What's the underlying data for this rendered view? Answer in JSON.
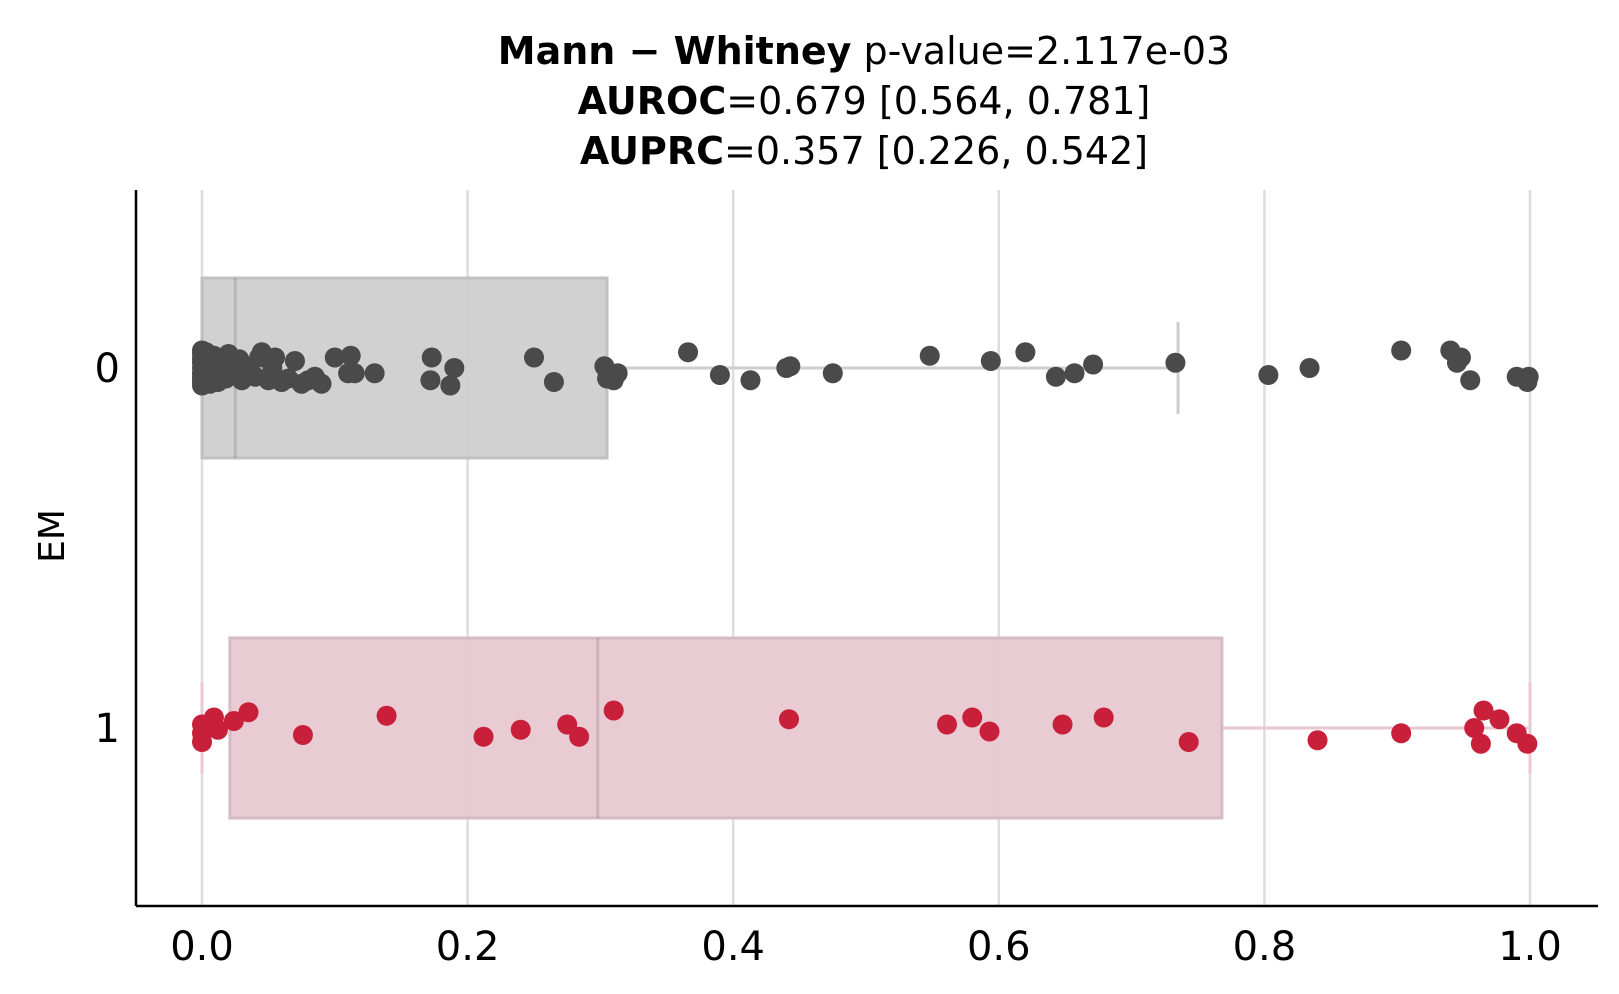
{
  "title": {
    "line1_bold": "Mann − Whitney",
    "line1_rest": " p-value=2.117e-03",
    "line2_bold": "AUROC",
    "line2_rest": "=0.679 [0.564, 0.781]",
    "line3_bold": "AUPRC",
    "line3_rest": "=0.357 [0.226, 0.542]"
  },
  "chart_data": {
    "type": "box",
    "orientation": "horizontal",
    "ylabel": "EM",
    "xlabel": "",
    "xlim": [
      -0.05,
      1.05
    ],
    "xticks": [
      "0.0",
      "0.2",
      "0.4",
      "0.6",
      "0.8",
      "1.0"
    ],
    "xtick_values": [
      0,
      0.2,
      0.4,
      0.6,
      0.8,
      1.0
    ],
    "grid": "vertical",
    "groups": [
      {
        "label": "0",
        "box_color": "#cfcfcf",
        "point_color": "#4a4a4a",
        "q1": 0.0,
        "median": 0.025,
        "q3": 0.305,
        "whisker_low": 0.0,
        "whisker_high": 0.735,
        "points": [
          0.0,
          0.0,
          0.0,
          0.0,
          0.0,
          0.0,
          0.0,
          0.0,
          0.0,
          0.0,
          0.002,
          0.003,
          0.004,
          0.005,
          0.006,
          0.007,
          0.008,
          0.009,
          0.01,
          0.012,
          0.015,
          0.018,
          0.02,
          0.022,
          0.025,
          0.028,
          0.03,
          0.033,
          0.035,
          0.04,
          0.043,
          0.045,
          0.05,
          0.053,
          0.055,
          0.06,
          0.065,
          0.07,
          0.075,
          0.08,
          0.085,
          0.09,
          0.1,
          0.11,
          0.112,
          0.115,
          0.13,
          0.172,
          0.173,
          0.187,
          0.19,
          0.25,
          0.265,
          0.303,
          0.305,
          0.31,
          0.313,
          0.366,
          0.39,
          0.413,
          0.44,
          0.443,
          0.475,
          0.548,
          0.594,
          0.62,
          0.643,
          0.657,
          0.671,
          0.733,
          0.803,
          0.834,
          0.903,
          0.94,
          0.945,
          0.948,
          0.955,
          0.99,
          0.998,
          0.999
        ],
        "jitter": [
          0.1,
          -0.1,
          0.05,
          -0.05,
          0.0,
          0.08,
          -0.08,
          0.03,
          -0.03,
          0.06,
          0.07,
          -0.09,
          0.02,
          -0.06,
          0.09,
          -0.02,
          0.04,
          -0.07,
          0.01,
          0.08,
          -0.04,
          0.06,
          -0.08,
          0.03,
          0.02,
          -0.05,
          0.07,
          -0.01,
          0.04,
          0.05,
          -0.06,
          -0.09,
          0.07,
          0.0,
          -0.06,
          0.08,
          0.06,
          -0.04,
          0.09,
          0.07,
          0.05,
          0.09,
          -0.06,
          0.03,
          -0.07,
          0.03,
          0.03,
          0.07,
          -0.06,
          0.1,
          0.0,
          -0.06,
          0.08,
          -0.01,
          0.06,
          0.07,
          0.03,
          -0.09,
          0.04,
          0.07,
          0.0,
          -0.01,
          0.03,
          -0.07,
          -0.04,
          -0.09,
          0.05,
          0.03,
          -0.02,
          -0.03,
          0.04,
          0.0,
          -0.1,
          -0.1,
          -0.03,
          -0.06,
          0.07,
          0.05,
          0.08,
          0.05
        ]
      },
      {
        "label": "1",
        "box_color": "#e8c9d1",
        "point_color": "#c8203b",
        "q1": 0.021,
        "median": 0.298,
        "q3": 0.768,
        "whisker_low": 0.0,
        "whisker_high": 1.0,
        "points": [
          0.0,
          0.0,
          0.0,
          0.009,
          0.01,
          0.012,
          0.024,
          0.035,
          0.076,
          0.139,
          0.212,
          0.24,
          0.275,
          0.284,
          0.31,
          0.442,
          0.561,
          0.58,
          0.593,
          0.648,
          0.679,
          0.743,
          0.84,
          0.903,
          0.958,
          0.963,
          0.965,
          0.977,
          0.99,
          0.998
        ],
        "jitter": [
          0.08,
          0.03,
          -0.02,
          -0.06,
          0.0,
          0.01,
          -0.04,
          -0.09,
          0.04,
          -0.07,
          0.05,
          0.01,
          -0.02,
          0.05,
          -0.1,
          -0.05,
          -0.02,
          -0.06,
          0.02,
          -0.02,
          -0.06,
          0.08,
          0.07,
          0.03,
          0.0,
          0.09,
          -0.1,
          -0.05,
          0.03,
          0.09
        ]
      }
    ]
  }
}
